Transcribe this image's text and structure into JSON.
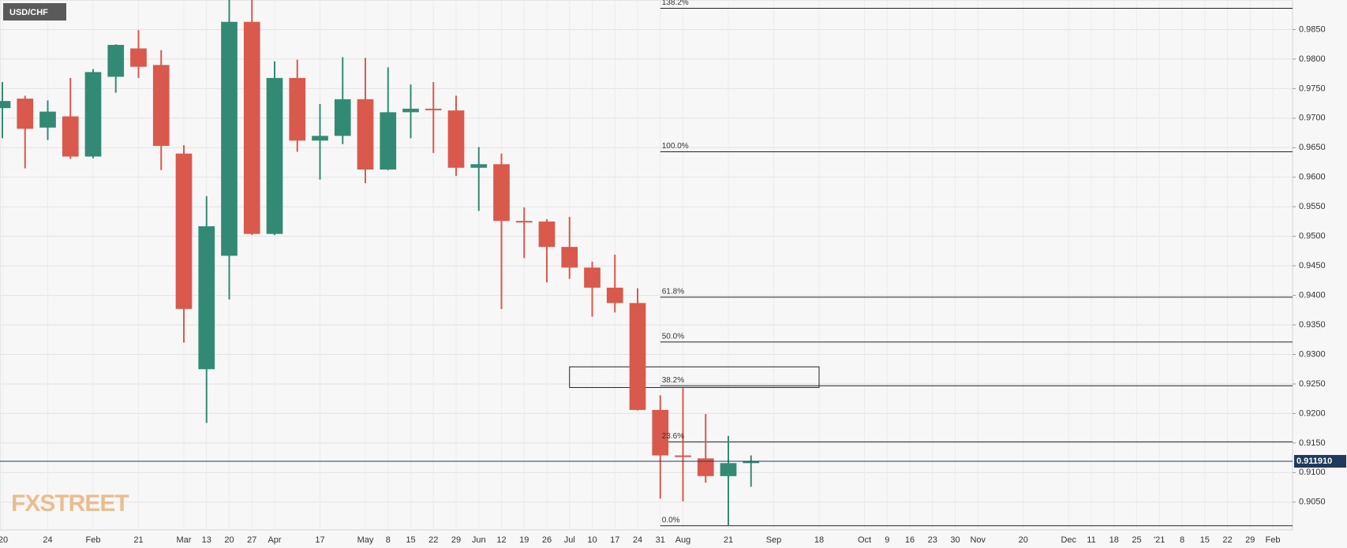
{
  "chart_data": {
    "type": "candlestick",
    "title": "USD/CHF",
    "watermark": "FXSTREET",
    "categories": [
      "'20",
      null,
      "24",
      null,
      "Feb",
      null,
      "21",
      null,
      "Mar",
      "13",
      "20",
      "27",
      "Apr",
      null,
      "17",
      null,
      "May",
      "8",
      "15",
      "22",
      "29",
      "Jun",
      "12",
      "19",
      "26",
      "Jul",
      "10",
      "17",
      "24",
      "31",
      "Aug",
      null,
      "21",
      null,
      "Sep",
      null,
      "18",
      null,
      "Oct",
      "9",
      "16",
      "23",
      "30",
      "Nov",
      null,
      "20",
      null,
      "Dec",
      "11",
      "18",
      "25",
      "'21",
      "8",
      "15",
      "22",
      "29",
      "Feb"
    ],
    "open": [
      0.9717,
      0.9733,
      0.9684,
      0.9703,
      0.9635,
      0.977,
      0.9818,
      0.979,
      0.964,
      0.9275,
      0.9467,
      0.9863,
      0.9504,
      0.9768,
      0.9662,
      0.967,
      0.9732,
      0.9613,
      0.971,
      0.9716,
      0.9713,
      0.9616,
      0.9622,
      0.9526,
      0.9525,
      0.9482,
      0.9447,
      0.9413,
      0.9387,
      0.9206,
      0.9129,
      0.9124,
      0.9094,
      0.9116,
      null,
      null,
      null,
      null,
      null,
      null,
      null,
      null,
      null,
      null,
      null,
      null,
      null,
      null,
      null,
      null,
      null,
      null,
      null,
      null,
      null,
      null,
      null
    ],
    "high": [
      0.9761,
      0.9738,
      0.973,
      0.9768,
      0.9783,
      0.9825,
      0.9849,
      0.9815,
      0.9654,
      0.9568,
      0.992,
      0.9925,
      0.9796,
      0.9799,
      0.9724,
      0.9803,
      0.9802,
      0.9786,
      0.9757,
      0.9761,
      0.9738,
      0.9651,
      0.964,
      0.9549,
      0.9529,
      0.9533,
      0.9457,
      0.9469,
      0.9412,
      0.9231,
      0.9243,
      0.9199,
      0.9162,
      0.9129,
      null,
      null,
      null,
      null,
      null,
      null,
      null,
      null,
      null,
      null,
      null,
      null,
      null,
      null,
      null,
      null,
      null,
      null,
      null,
      null,
      null,
      null,
      null
    ],
    "low": [
      0.9666,
      0.9615,
      0.9663,
      0.9631,
      0.9632,
      0.9743,
      0.9768,
      0.9612,
      0.932,
      0.9184,
      0.9393,
      0.9502,
      0.9502,
      0.9643,
      0.9596,
      0.9656,
      0.959,
      0.9612,
      0.9666,
      0.9641,
      0.9602,
      0.9543,
      0.9377,
      0.9463,
      0.9422,
      0.9428,
      0.9364,
      0.9371,
      0.9205,
      0.9056,
      0.9051,
      0.9083,
      0.901,
      0.9076,
      null,
      null,
      null,
      null,
      null,
      null,
      null,
      null,
      null,
      null,
      null,
      null,
      null,
      null,
      null,
      null,
      null,
      null,
      null,
      null,
      null,
      null,
      null
    ],
    "close": [
      0.9729,
      0.9682,
      0.9711,
      0.9635,
      0.9778,
      0.9824,
      0.9787,
      0.9653,
      0.9377,
      0.9517,
      0.9863,
      0.9504,
      0.9768,
      0.9662,
      0.967,
      0.9732,
      0.9613,
      0.971,
      0.9716,
      0.9715,
      0.9616,
      0.9622,
      0.9526,
      0.9524,
      0.9482,
      0.9447,
      0.9413,
      0.9387,
      0.9206,
      0.9129,
      0.9127,
      0.9094,
      0.9116,
      0.9119,
      null,
      null,
      null,
      null,
      null,
      null,
      null,
      null,
      null,
      null,
      null,
      null,
      null,
      null,
      null,
      null,
      null,
      null,
      null,
      null,
      null,
      null,
      null
    ],
    "up_color": "#338a74",
    "down_color": "#d9594c",
    "ylim": [
      0.9003,
      0.99
    ],
    "yticks": [
      {
        "value": 0.905,
        "label": "0.9050"
      },
      {
        "value": 0.91,
        "label": "0.9100"
      },
      {
        "value": 0.915,
        "label": "0.9150"
      },
      {
        "value": 0.92,
        "label": "0.9200"
      },
      {
        "value": 0.925,
        "label": "0.9250"
      },
      {
        "value": 0.93,
        "label": "0.9300"
      },
      {
        "value": 0.935,
        "label": "0.9350"
      },
      {
        "value": 0.94,
        "label": "0.9400"
      },
      {
        "value": 0.945,
        "label": "0.9450"
      },
      {
        "value": 0.95,
        "label": "0.9500"
      },
      {
        "value": 0.955,
        "label": "0.9550"
      },
      {
        "value": 0.96,
        "label": "0.9600"
      },
      {
        "value": 0.965,
        "label": "0.9650"
      },
      {
        "value": 0.97,
        "label": "0.9700"
      },
      {
        "value": 0.975,
        "label": "0.9750"
      },
      {
        "value": 0.98,
        "label": "0.9800"
      },
      {
        "value": 0.985,
        "label": "0.9850"
      }
    ],
    "grid": true,
    "fib_levels": [
      {
        "label": "138.2%",
        "value": 0.9886
      },
      {
        "label": "100.0%",
        "value": 0.9643
      },
      {
        "label": "61.8%",
        "value": 0.9397
      },
      {
        "label": "50.0%",
        "value": 0.9321
      },
      {
        "label": "38.2%",
        "value": 0.9247
      },
      {
        "label": "23.6%",
        "value": 0.9152
      },
      {
        "label": "0.0%",
        "value": 0.901
      }
    ],
    "zone": [
      0.9244,
      0.9279
    ],
    "current_price": {
      "value": 0.91191,
      "label": "0.911910"
    }
  }
}
